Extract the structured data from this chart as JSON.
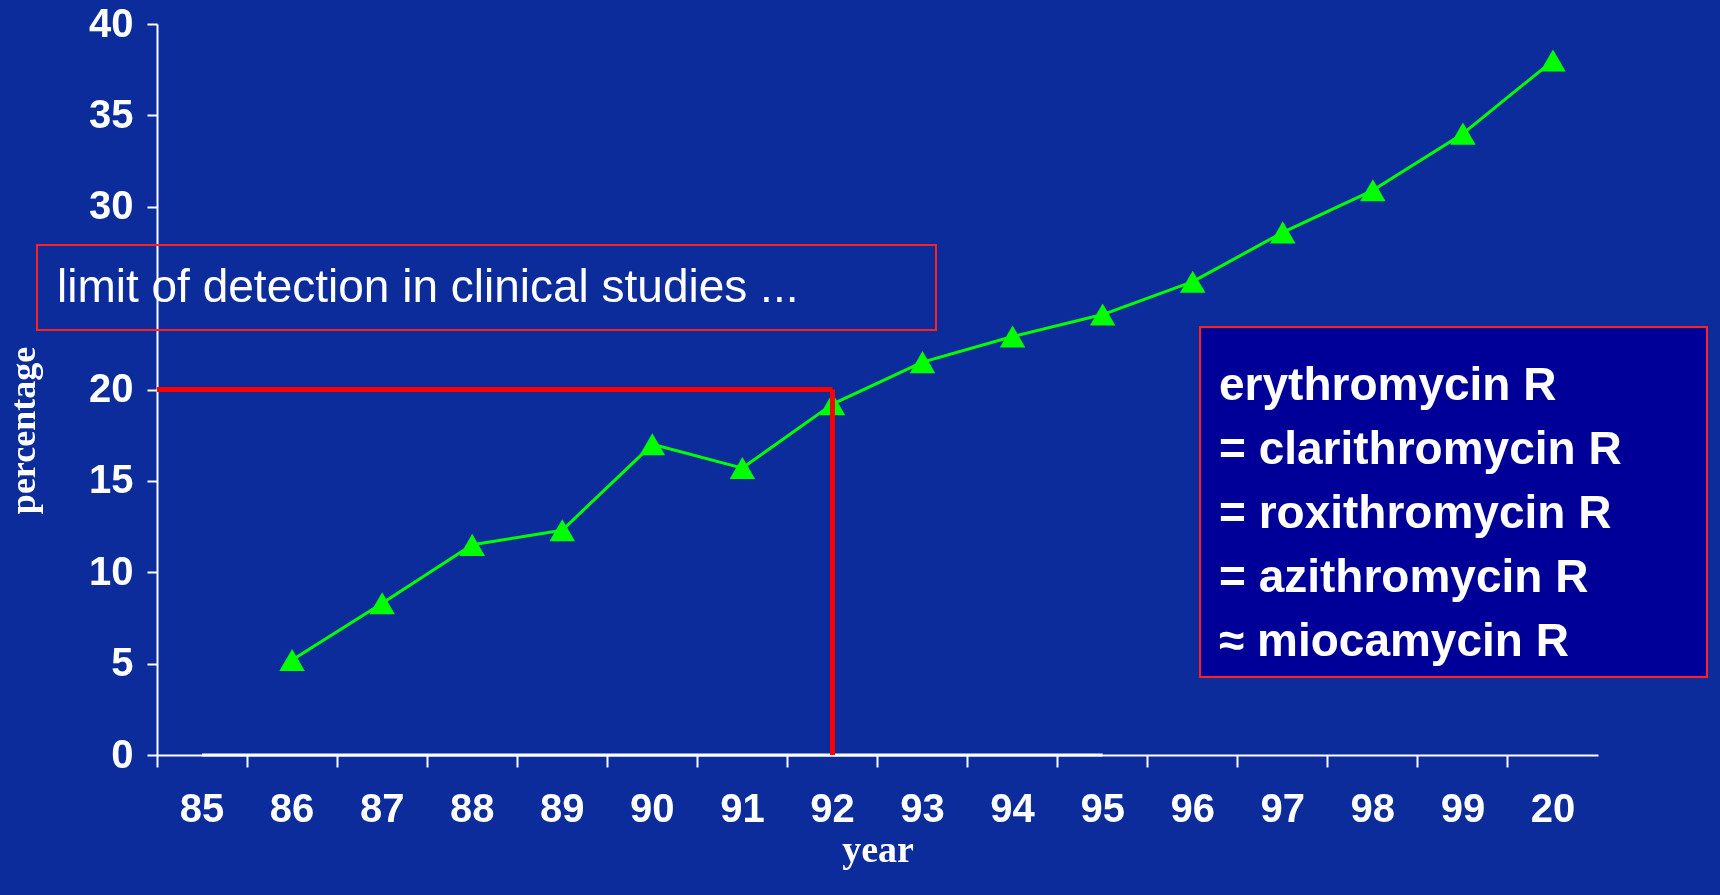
{
  "chart_data": {
    "type": "line",
    "xlabel": "year",
    "ylabel": "percentage",
    "categories": [
      "85",
      "86",
      "87",
      "88",
      "89",
      "90",
      "91",
      "92",
      "93",
      "94",
      "95",
      "96",
      "97",
      "98",
      "99",
      "20"
    ],
    "series": [
      {
        "color": "#00ff00",
        "values": [
          null,
          5.2,
          8.3,
          11.5,
          12.3,
          17.0,
          15.7,
          19.2,
          21.5,
          22.9,
          24.1,
          25.9,
          28.6,
          30.9,
          34.0,
          38.0
        ]
      },
      {
        "color": "#ffffff",
        "marker": "none",
        "values": [
          0,
          0,
          0,
          0,
          0,
          0,
          0,
          0,
          0,
          0,
          0,
          null,
          null,
          null,
          null,
          null
        ]
      }
    ],
    "ylim": [
      0,
      40
    ],
    "yticks": [
      0,
      5,
      10,
      15,
      20,
      30,
      35,
      40
    ],
    "ref_lines": [
      {
        "axis": "y",
        "value": 20,
        "color": "#ff0000"
      },
      {
        "axis": "x",
        "value": "92",
        "color": "#ff0000"
      }
    ],
    "annotations": [
      "limit of detection in clinical studies ...",
      "erythromycin R",
      "= clarithromycin R",
      "= roxithromycin R",
      "= azithromycin R",
      "≈ miocamycin R"
    ],
    "marker": "triangle",
    "grid": false
  }
}
